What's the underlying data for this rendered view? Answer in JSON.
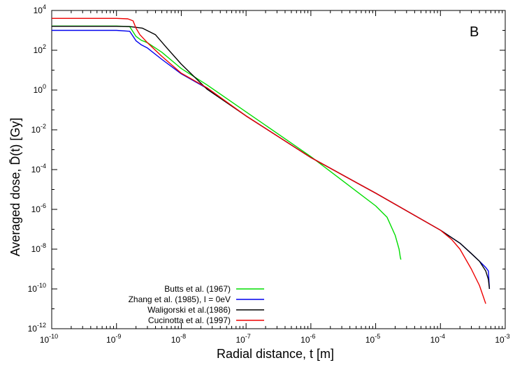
{
  "chart_data": {
    "type": "line",
    "panel_label": "B",
    "xlabel": "Radial distance, t [m]",
    "ylabel": "Averaged dose, D̄(t) [Gy]",
    "xscale": "log",
    "yscale": "log",
    "xlim": [
      1e-10,
      0.001
    ],
    "ylim": [
      1e-12,
      10000.0
    ],
    "grid": false,
    "legend_position": "bottom-left",
    "x_ticks": [
      {
        "base": "10",
        "exp": "-10",
        "value": 1e-10
      },
      {
        "base": "10",
        "exp": "-9",
        "value": 1e-09
      },
      {
        "base": "10",
        "exp": "-8",
        "value": 1e-08
      },
      {
        "base": "10",
        "exp": "-7",
        "value": 1e-07
      },
      {
        "base": "10",
        "exp": "-6",
        "value": 1e-06
      },
      {
        "base": "10",
        "exp": "-5",
        "value": 1e-05
      },
      {
        "base": "10",
        "exp": "-4",
        "value": 0.0001
      },
      {
        "base": "10",
        "exp": "-3",
        "value": 0.001
      }
    ],
    "y_ticks": [
      {
        "base": "10",
        "exp": "4",
        "value": 10000.0
      },
      {
        "base": "10",
        "exp": "2",
        "value": 100.0
      },
      {
        "base": "10",
        "exp": "0",
        "value": 1
      },
      {
        "base": "10",
        "exp": "-2",
        "value": 0.01
      },
      {
        "base": "10",
        "exp": "-4",
        "value": 0.0001
      },
      {
        "base": "10",
        "exp": "-6",
        "value": 1e-06
      },
      {
        "base": "10",
        "exp": "-8",
        "value": 1e-08
      },
      {
        "base": "10",
        "exp": "-10",
        "value": 1e-10
      },
      {
        "base": "10",
        "exp": "-12",
        "value": 1e-12
      }
    ],
    "series": [
      {
        "name": "Butts et al. (1967)",
        "color": "#00dd00",
        "x": [
          1e-10,
          1e-09,
          1.6e-09,
          2e-09,
          2.4e-09,
          3e-09,
          5e-09,
          1e-08,
          2.5e-08,
          1e-07,
          1e-06,
          1e-05,
          1.5e-05,
          2e-05,
          2.3e-05,
          2.4e-05,
          2.45e-05
        ],
        "y": [
          1650,
          1650,
          1550,
          500,
          320,
          240,
          80,
          12,
          1.8,
          0.08,
          0.00045,
          1.5e-06,
          4e-07,
          5e-08,
          1e-08,
          4e-09,
          3e-09
        ]
      },
      {
        "name": "Zhang et al. (1985), I = 0eV",
        "color": "#0000ee",
        "x": [
          1e-10,
          1e-09,
          1.6e-09,
          2e-09,
          2.4e-09,
          3e-09,
          5e-09,
          1e-08,
          2.5e-08,
          1e-07,
          1e-06,
          1e-05,
          0.0001,
          0.0002,
          0.0003,
          0.0004,
          0.0005,
          0.00055,
          0.00057
        ],
        "y": [
          1000,
          1000,
          900,
          300,
          190,
          130,
          35,
          6.5,
          1.2,
          0.05,
          0.0004,
          6.5e-06,
          9e-08,
          2e-08,
          6e-09,
          2.5e-09,
          1.2e-09,
          8e-10,
          1e-10
        ]
      },
      {
        "name": "Waligorski et al.(1986)",
        "color": "#000000",
        "x": [
          1e-10,
          1e-09,
          1.6e-09,
          2.5e-09,
          4e-09,
          6e-09,
          1e-08,
          1.6e-08,
          2.5e-08,
          1e-07,
          1e-06,
          1e-05,
          0.0001,
          0.0002,
          0.0003,
          0.0004,
          0.0005,
          0.00055,
          0.00057
        ],
        "y": [
          1600,
          1600,
          1550,
          1300,
          600,
          130,
          20,
          4.5,
          1.1,
          0.05,
          0.0004,
          6.5e-06,
          9e-08,
          2e-08,
          6e-09,
          2.5e-09,
          8e-10,
          3e-10,
          1e-10
        ]
      },
      {
        "name": "Cucinotta et al. (1997)",
        "color": "#ee0000",
        "x": [
          1e-10,
          1e-09,
          1.5e-09,
          1.8e-09,
          2e-09,
          2.3e-09,
          3e-09,
          5e-09,
          1e-08,
          2.5e-08,
          1e-07,
          1e-06,
          1e-05,
          0.0001,
          0.00015,
          0.0002,
          0.0003,
          0.0004,
          0.00045,
          0.0005
        ],
        "y": [
          4000,
          4000,
          3800,
          3000,
          1300,
          600,
          240,
          50,
          7,
          1.3,
          0.05,
          0.0004,
          6.5e-06,
          9e-08,
          3e-08,
          1e-08,
          1e-09,
          1.5e-10,
          5e-11,
          1.8e-11
        ]
      }
    ]
  }
}
